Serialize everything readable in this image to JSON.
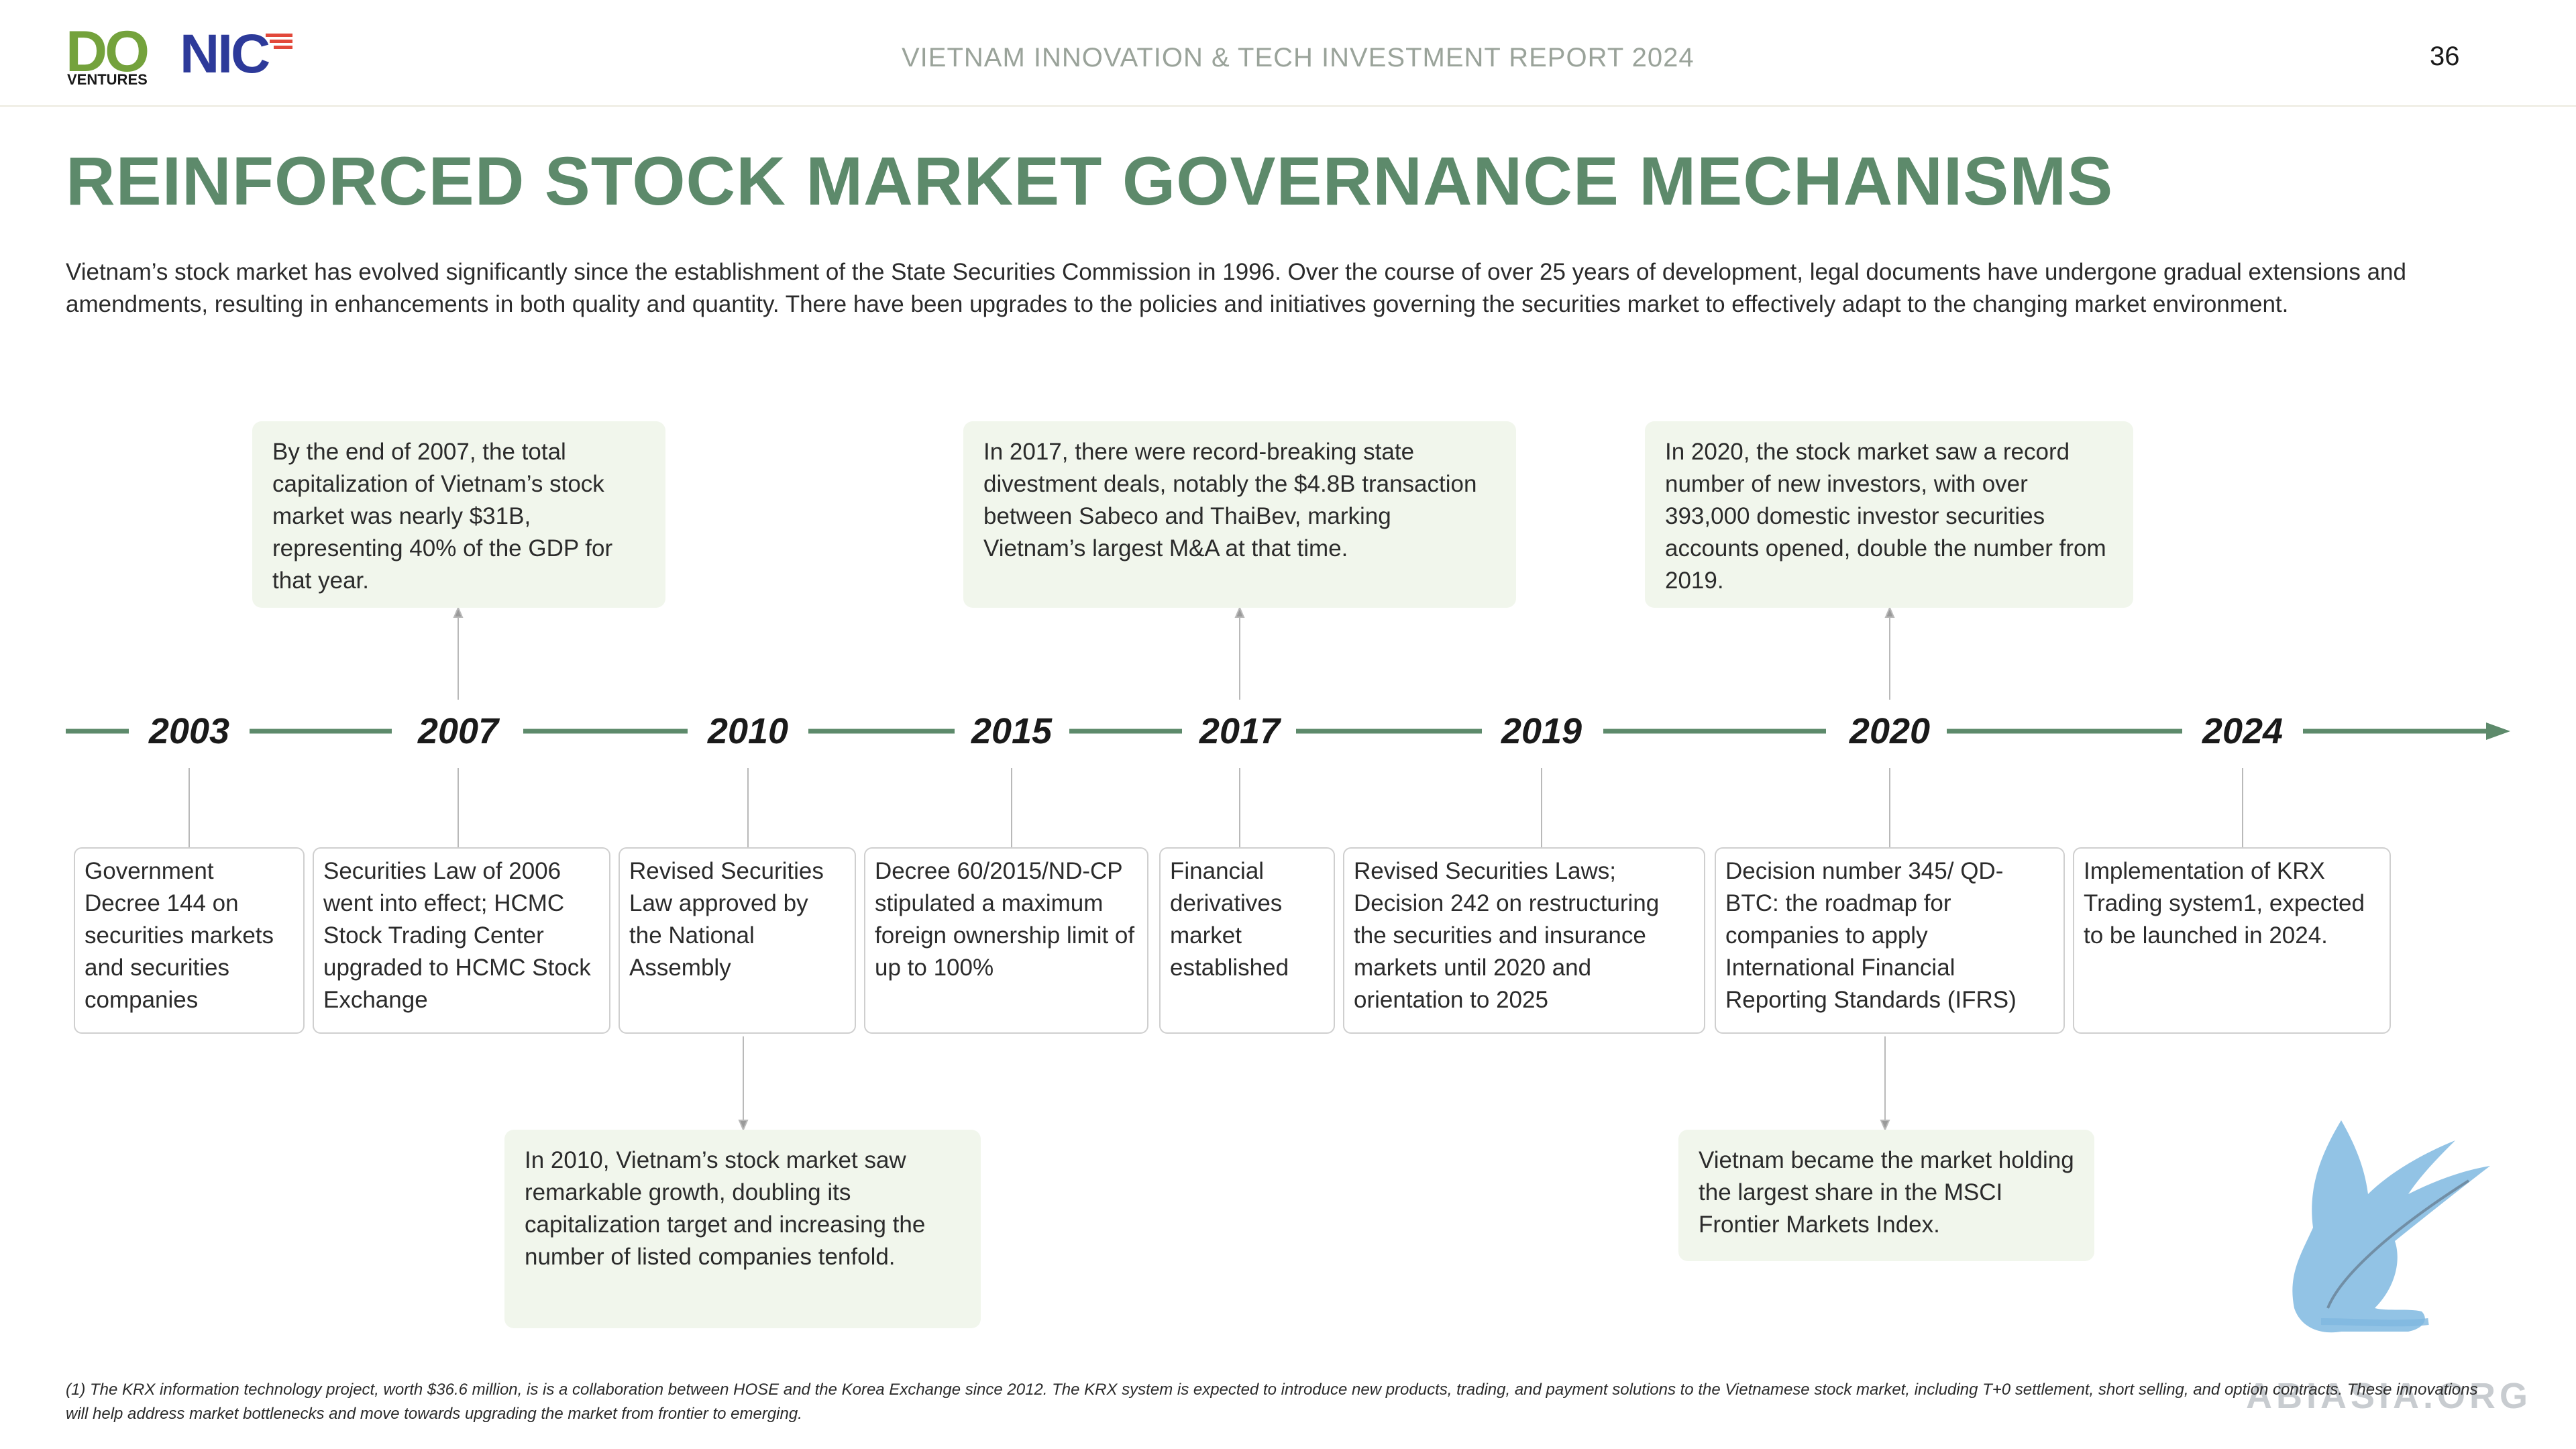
{
  "header": {
    "logo_do": "DO",
    "logo_ventures": "VENTURES",
    "logo_nic": "NIC",
    "report_title": "VIETNAM INNOVATION & TECH INVESTMENT REPORT 2024",
    "page_number": "36"
  },
  "title": "REINFORCED STOCK MARKET GOVERNANCE MECHANISMS",
  "intro": "Vietnam’s stock market has evolved significantly since the establishment of the State Securities Commission in 1996. Over the course of over 25 years of development, legal documents have undergone gradual extensions and amendments, resulting in enhancements in both quality and quantity. There have been upgrades to the policies and initiatives governing the securities market to effectively adapt to the changing market environment.",
  "timeline": {
    "years": [
      "2003",
      "2007",
      "2010",
      "2015",
      "2017",
      "2019",
      "2020",
      "2024"
    ],
    "events": [
      "Government Decree 144 on securities markets and securities companies",
      "Securities Law of 2006 went into effect; HCMC Stock Trading Center upgraded to HCMC Stock Exchange",
      "Revised Securities Law approved by the National Assembly",
      "Decree 60/2015/ND-CP stipulated a maximum foreign ownership limit of up to 100%",
      "Financial derivatives market established",
      "Revised Securities Laws; Decision 242 on restructuring the securities and insurance markets until 2020 and orientation to 2025",
      "Decision number 345/ QD-BTC: the roadmap for companies to apply International Financial Reporting Standards (IFRS)",
      "Implementation of KRX Trading system1, expected to be launched in 2024."
    ],
    "notes_top": [
      "By the end of 2007, the total capitalization of Vietnam’s stock market was nearly $31B, representing 40% of the GDP for that year.",
      "In 2017, there were record-breaking state divestment deals, notably the $4.8B transaction between Sabeco and ThaiBev, marking Vietnam’s largest M&A at that time.",
      "In 2020, the stock market saw a record number of new investors, with over 393,000 domestic investor securities accounts opened, double the number from 2019."
    ],
    "notes_bottom": [
      "In 2010, Vietnam’s stock market saw remarkable growth, doubling its capitalization target and increasing the number of listed companies tenfold.",
      "Vietnam became the market holding the largest share in the MSCI Frontier Markets Index."
    ]
  },
  "footnote": "(1) The KRX information technology project, worth $36.6 million, is is a collaboration between HOSE and the Korea Exchange since 2012.  The KRX system is expected to introduce new products, trading, and payment solutions to the Vietnamese stock market, including T+0 settlement, short selling, and option contracts. These innovations will help address market bottlenecks and move towards upgrading the market from frontier to emerging.",
  "watermark_text": "ABIASIA.ORG",
  "colors": {
    "title_green": "#5d8a6b",
    "timeline_green": "#5d8a6b",
    "note_bg": "#f1f6ec",
    "do_green": "#74a23c",
    "nic_blue": "#2d3a9a"
  }
}
